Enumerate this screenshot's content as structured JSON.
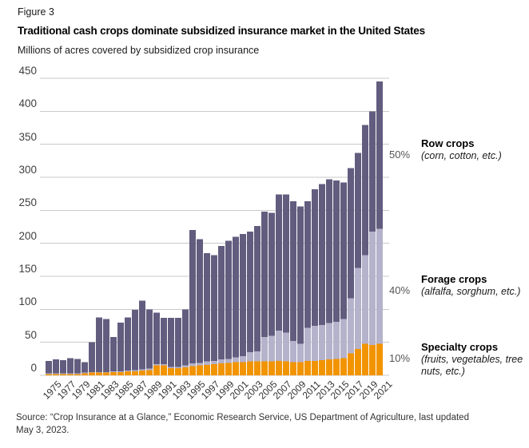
{
  "figure_label": "Figure 3",
  "title": "Traditional cash crops dominate subsidized insurance market in the United States",
  "subtitle": "Millions of acres covered by subsidized crop insurance",
  "source_line1": "Source: “Crop Insurance at a Glance,” Economic Research Service, US Department of Agriculture, last updated",
  "source_line2": "May 3, 2023.",
  "legend": [
    {
      "pct": "50%",
      "name": "Row crops",
      "desc": "(corn, cotton, etc.)",
      "color": "#625d7f"
    },
    {
      "pct": "40%",
      "name": "Forage crops",
      "desc": "(alfalfa, sorghum, etc.)",
      "color": "#b5b2cb"
    },
    {
      "pct": "10%",
      "name": "Specialty crops",
      "desc": "(fruits, vegetables, tree nuts, etc.)",
      "color": "#f29400"
    }
  ],
  "chart_data": {
    "type": "bar",
    "stacked": true,
    "title": "Traditional cash crops dominate subsidized insurance market in the United States",
    "ylabel": "Millions of acres covered by subsidized crop insurance",
    "ylim": [
      0,
      450
    ],
    "ytick_step": 50,
    "grid": true,
    "legend_position": "right",
    "x": [
      1975,
      1976,
      1977,
      1978,
      1979,
      1980,
      1981,
      1982,
      1983,
      1984,
      1985,
      1986,
      1987,
      1988,
      1989,
      1990,
      1991,
      1992,
      1993,
      1994,
      1995,
      1996,
      1997,
      1998,
      1999,
      2000,
      2001,
      2002,
      2003,
      2004,
      2005,
      2006,
      2007,
      2008,
      2009,
      2010,
      2011,
      2012,
      2013,
      2014,
      2015,
      2016,
      2017,
      2018,
      2019,
      2020,
      2021
    ],
    "xtick_labels": [
      1975,
      1977,
      1979,
      1981,
      1983,
      1985,
      1987,
      1989,
      1991,
      1993,
      1995,
      1997,
      1999,
      2001,
      2003,
      2005,
      2007,
      2009,
      2011,
      2013,
      2015,
      2017,
      2019,
      2021
    ],
    "series": [
      {
        "name": "Specialty crops",
        "color": "#f29400",
        "values": [
          2,
          2,
          2,
          2,
          2,
          3,
          4,
          4,
          4,
          5,
          5,
          6,
          6,
          7,
          8,
          15,
          15,
          11,
          11,
          12,
          14,
          15,
          16,
          17,
          18,
          19,
          20,
          20,
          21,
          21,
          21,
          21,
          22,
          21,
          20,
          20,
          22,
          22,
          23,
          24,
          25,
          26,
          33,
          40,
          48,
          46,
          48
        ]
      },
      {
        "name": "Forage crops",
        "color": "#b5b2cb",
        "values": [
          1,
          1,
          1,
          1,
          1,
          1,
          1,
          1,
          1,
          1,
          1,
          1,
          2,
          2,
          2,
          2,
          2,
          2,
          2,
          3,
          4,
          4,
          5,
          5,
          6,
          6,
          7,
          9,
          14,
          15,
          37,
          39,
          46,
          44,
          32,
          28,
          50,
          53,
          53,
          55,
          56,
          59,
          84,
          123,
          134,
          172,
          174
        ]
      },
      {
        "name": "Row crops",
        "color": "#625d7f",
        "values": [
          19,
          21,
          20,
          23,
          22,
          16,
          45,
          83,
          80,
          52,
          74,
          81,
          91,
          104,
          90,
          78,
          70,
          74,
          74,
          85,
          202,
          187,
          164,
          160,
          172,
          179,
          183,
          185,
          183,
          190,
          190,
          186,
          206,
          209,
          212,
          208,
          192,
          207,
          214,
          218,
          214,
          207,
          197,
          174,
          197,
          182,
          223
        ]
      }
    ]
  }
}
